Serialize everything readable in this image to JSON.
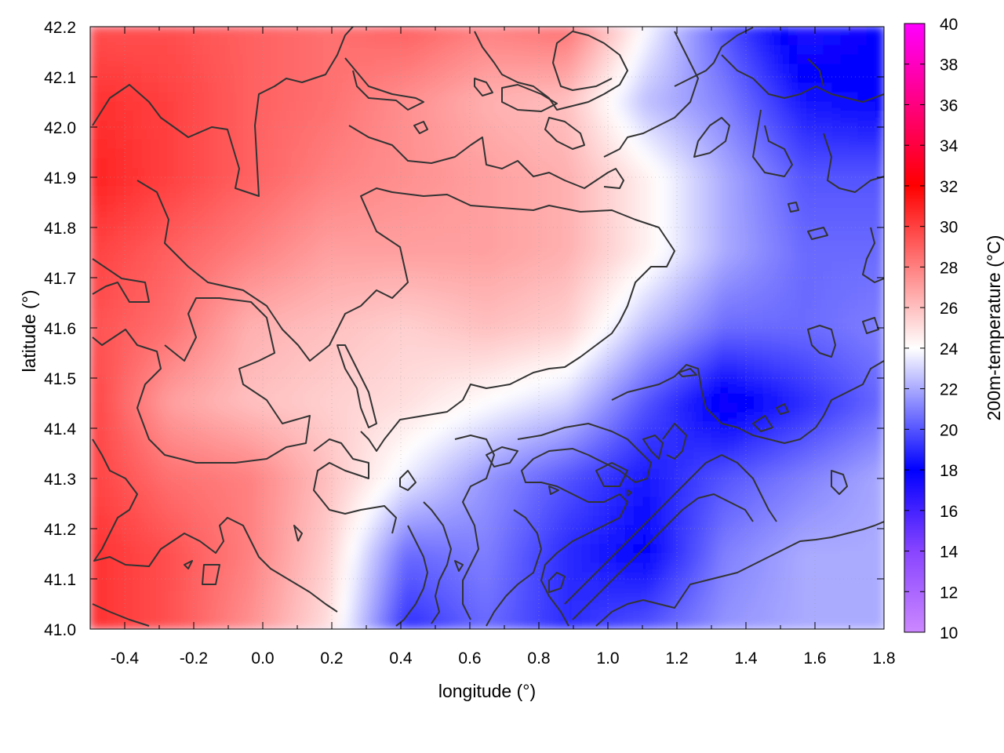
{
  "chart_data": {
    "type": "heatmap",
    "title": "",
    "xlabel": "longitude (°)",
    "ylabel": "latitude (°)",
    "colorbar_label": "200m-temperature (°C)",
    "xlim": [
      -0.5,
      1.8
    ],
    "ylim": [
      41.0,
      42.2
    ],
    "x_ticks": [
      -0.4,
      -0.2,
      0.0,
      0.2,
      0.4,
      0.6,
      0.8,
      1.0,
      1.2,
      1.4,
      1.6,
      1.8
    ],
    "x_tick_labels": [
      "-0.4",
      "-0.2",
      "0.0",
      "0.2",
      "0.4",
      "0.6",
      "0.8",
      "1.0",
      "1.2",
      "1.4",
      "1.6",
      "1.8"
    ],
    "y_ticks": [
      41.0,
      41.1,
      41.2,
      41.3,
      41.4,
      41.5,
      41.6,
      41.7,
      41.8,
      41.9,
      42.0,
      42.1,
      42.2
    ],
    "y_tick_labels": [
      "41.0",
      "41.1",
      "41.2",
      "41.3",
      "41.4",
      "41.5",
      "41.6",
      "41.7",
      "41.8",
      "41.9",
      "42.0",
      "42.1",
      "42.2"
    ],
    "colorbar_range": [
      10,
      40
    ],
    "colorbar_ticks": [
      10,
      12,
      14,
      16,
      18,
      20,
      22,
      24,
      26,
      28,
      30,
      32,
      34,
      36,
      38,
      40
    ],
    "colorbar_tick_labels": [
      "10",
      "12",
      "14",
      "16",
      "18",
      "20",
      "22",
      "24",
      "26",
      "28",
      "30",
      "32",
      "34",
      "36",
      "38",
      "40"
    ],
    "colormap": [
      {
        "value": 10,
        "color": "#cc88ff"
      },
      {
        "value": 14,
        "color": "#8844ff"
      },
      {
        "value": 18,
        "color": "#0000ff"
      },
      {
        "value": 24,
        "color": "#ffffff"
      },
      {
        "value": 32,
        "color": "#ff0000"
      },
      {
        "value": 40,
        "color": "#ff00ff"
      }
    ],
    "grid": true,
    "contours": true,
    "contour_color": "#333333",
    "temperature_grid": {
      "lons": [
        -0.5,
        -0.27,
        -0.04,
        0.19,
        0.42,
        0.65,
        0.88,
        1.11,
        1.34,
        1.57,
        1.8
      ],
      "lats": [
        42.2,
        42.05,
        41.9,
        41.75,
        41.6,
        41.45,
        41.3,
        41.15,
        41.0
      ],
      "values_celsius": [
        [
          29.5,
          29.5,
          29.0,
          28.5,
          29.0,
          28.0,
          28.5,
          24.0,
          20.0,
          17.0,
          18.0
        ],
        [
          30.5,
          30.0,
          29.0,
          28.5,
          27.5,
          26.5,
          26.0,
          22.5,
          21.0,
          18.5,
          18.0
        ],
        [
          31.0,
          30.0,
          29.0,
          28.0,
          27.5,
          27.0,
          26.5,
          24.5,
          22.0,
          20.0,
          20.0
        ],
        [
          30.0,
          29.0,
          28.0,
          27.0,
          27.0,
          27.0,
          26.5,
          24.5,
          22.0,
          20.5,
          20.5
        ],
        [
          29.5,
          28.5,
          26.5,
          26.0,
          25.5,
          26.0,
          25.5,
          22.5,
          20.5,
          20.5,
          21.0
        ],
        [
          30.0,
          27.0,
          26.0,
          25.5,
          25.0,
          24.0,
          23.0,
          20.0,
          17.5,
          19.0,
          20.5
        ],
        [
          30.0,
          28.5,
          28.0,
          26.0,
          23.5,
          21.5,
          20.0,
          18.5,
          20.0,
          21.0,
          22.0
        ],
        [
          30.5,
          29.5,
          28.0,
          25.5,
          20.5,
          21.0,
          19.0,
          18.0,
          21.0,
          22.0,
          22.0
        ],
        [
          30.5,
          29.5,
          27.5,
          25.0,
          19.0,
          20.5,
          19.0,
          20.0,
          21.5,
          22.0,
          22.0
        ]
      ]
    }
  }
}
